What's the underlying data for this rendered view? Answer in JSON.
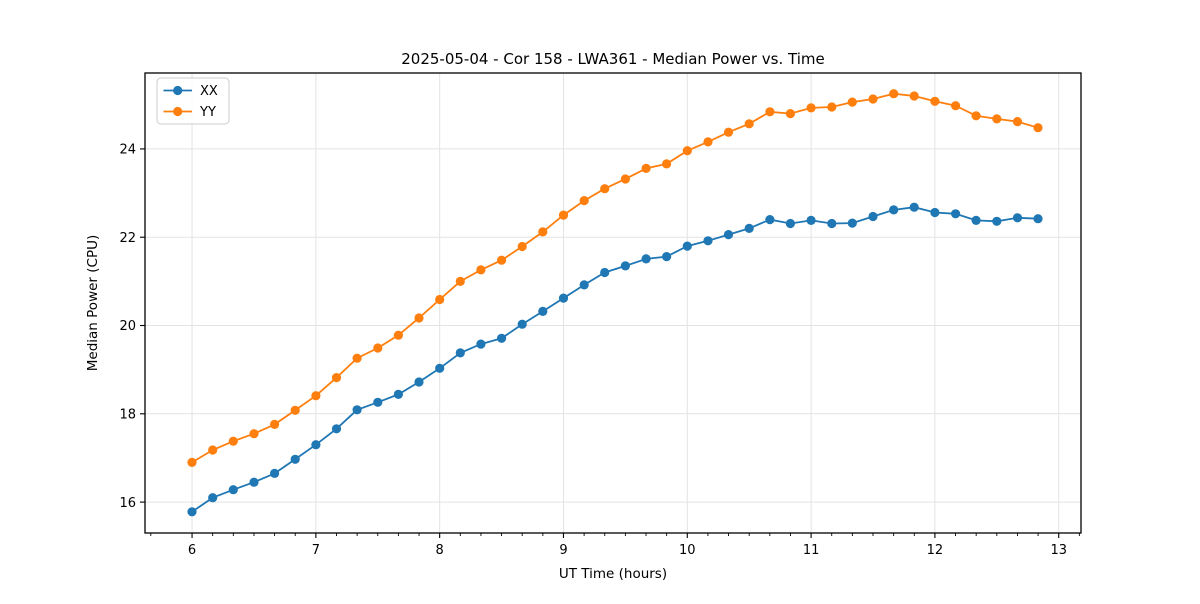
{
  "chart_data": {
    "type": "line",
    "title": "2025-05-04 - Cor 158 - LWA361 - Median Power vs. Time",
    "xlabel": "UT Time (hours)",
    "ylabel": "Median Power (CPU)",
    "xlim": [
      5.62,
      13.18
    ],
    "ylim": [
      15.3,
      25.72
    ],
    "grid": true,
    "legend_position": "upper-left",
    "x_tick_labels": [
      "6",
      "7",
      "8",
      "9",
      "10",
      "11",
      "12",
      "13"
    ],
    "x_major_ticks": [
      6,
      7,
      8,
      9,
      10,
      11,
      12,
      13
    ],
    "x_minor_tick_step": 0.16667,
    "y_tick_labels": [
      "16",
      "18",
      "20",
      "22",
      "24"
    ],
    "y_major_ticks": [
      16,
      18,
      20,
      22,
      24
    ],
    "x": [
      6.0,
      6.167,
      6.333,
      6.5,
      6.667,
      6.833,
      7.0,
      7.167,
      7.333,
      7.5,
      7.667,
      7.833,
      8.0,
      8.167,
      8.333,
      8.5,
      8.667,
      8.833,
      9.0,
      9.167,
      9.333,
      9.5,
      9.667,
      9.833,
      10.0,
      10.167,
      10.333,
      10.5,
      10.667,
      10.833,
      11.0,
      11.167,
      11.333,
      11.5,
      11.667,
      11.833,
      12.0,
      12.167,
      12.333,
      12.5,
      12.667,
      12.833
    ],
    "series": [
      {
        "name": "XX",
        "color": "#1f77b4",
        "values": [
          15.78,
          16.1,
          16.28,
          16.45,
          16.65,
          16.97,
          17.3,
          17.66,
          18.09,
          18.26,
          18.44,
          18.72,
          19.03,
          19.38,
          19.58,
          19.71,
          20.03,
          20.32,
          20.62,
          20.92,
          21.2,
          21.35,
          21.51,
          21.56,
          21.8,
          21.92,
          22.06,
          22.2,
          22.4,
          22.31,
          22.38,
          22.31,
          22.32,
          22.47,
          22.62,
          22.68,
          22.56,
          22.53,
          22.38,
          22.36,
          22.44,
          22.42
        ]
      },
      {
        "name": "YY",
        "color": "#ff7f0e",
        "values": [
          16.9,
          17.18,
          17.38,
          17.55,
          17.76,
          18.08,
          18.41,
          18.82,
          19.26,
          19.49,
          19.78,
          20.17,
          20.59,
          21.0,
          21.26,
          21.48,
          21.79,
          22.12,
          22.5,
          22.83,
          23.1,
          23.32,
          23.56,
          23.66,
          23.96,
          24.16,
          24.38,
          24.57,
          24.84,
          24.8,
          24.93,
          24.95,
          25.06,
          25.13,
          25.25,
          25.2,
          25.08,
          24.98,
          24.75,
          24.68,
          24.62,
          24.48
        ]
      }
    ]
  },
  "colors": {
    "background": "#ffffff",
    "grid": "#e3e3e3",
    "spine": "#000000",
    "tick": "#000000",
    "series_xx": "#1f77b4",
    "series_yy": "#ff7f0e",
    "legend_border": "#cccccc"
  }
}
